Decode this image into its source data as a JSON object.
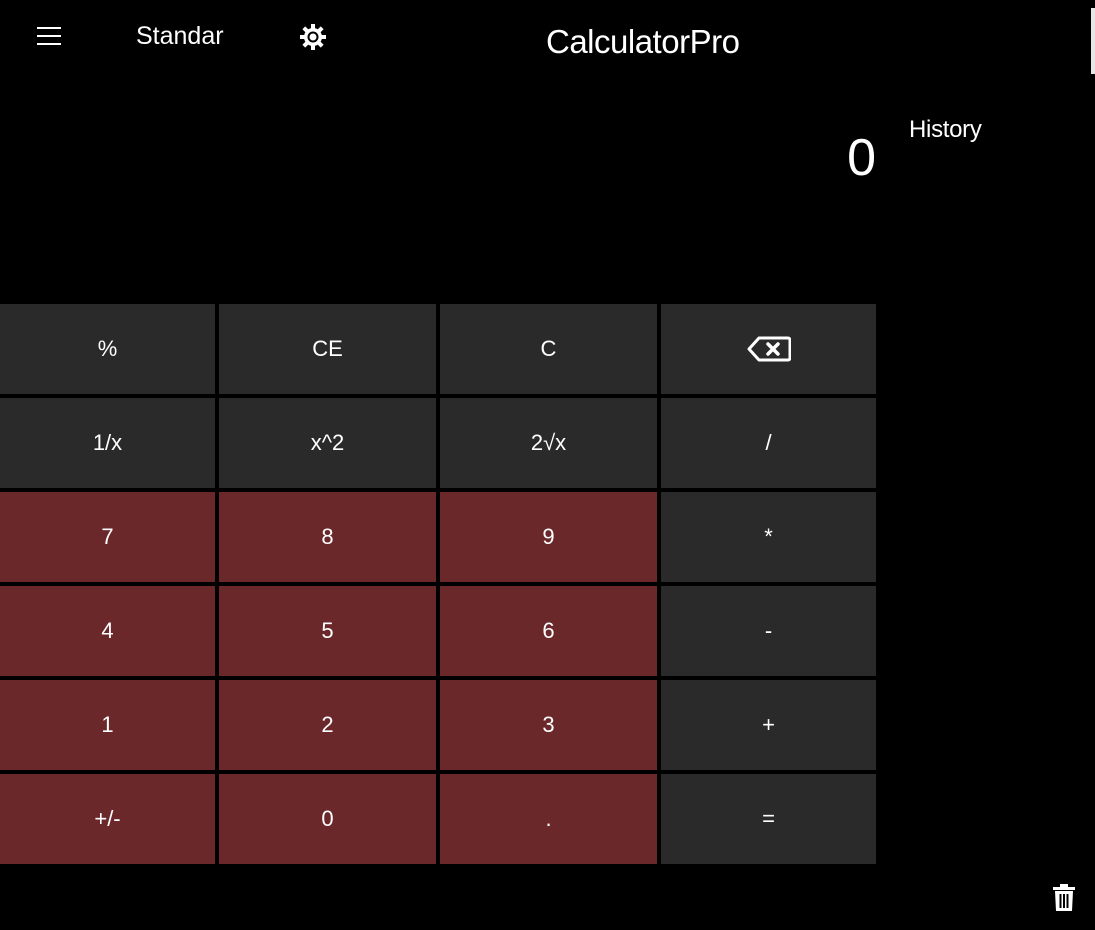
{
  "header": {
    "menu_icon": "hamburger-menu-icon",
    "mode_label": "Standar",
    "theme_icon": "sun-gear-icon",
    "title": "CalculatorPro"
  },
  "display": {
    "value": "0"
  },
  "history": {
    "title": "History",
    "clear_icon": "trash-icon"
  },
  "colors": {
    "background": "#000000",
    "function_key": "#2a2a2a",
    "number_key": "#6b282b",
    "text": "#ffffff"
  },
  "keypad": {
    "keys": [
      {
        "label": "%"
      },
      {
        "label": "CE"
      },
      {
        "label": "C"
      },
      {
        "label": "",
        "icon": "backspace-icon"
      },
      {
        "label": "1/x"
      },
      {
        "label": "x^2"
      },
      {
        "label": "2√x"
      },
      {
        "label": "/"
      },
      {
        "label": "7"
      },
      {
        "label": "8"
      },
      {
        "label": "9"
      },
      {
        "label": "*"
      },
      {
        "label": "4"
      },
      {
        "label": "5"
      },
      {
        "label": "6"
      },
      {
        "label": "-"
      },
      {
        "label": "1"
      },
      {
        "label": "2"
      },
      {
        "label": "3"
      },
      {
        "label": "+"
      },
      {
        "label": "+/-"
      },
      {
        "label": "0"
      },
      {
        "label": "."
      },
      {
        "label": "="
      }
    ]
  }
}
